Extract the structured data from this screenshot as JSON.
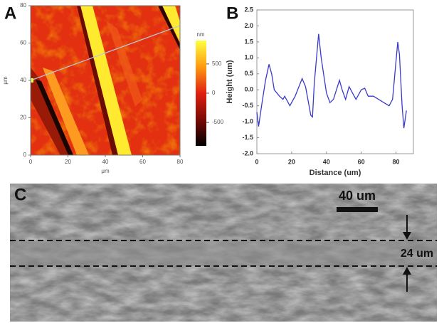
{
  "chart_data": [
    {
      "type": "heatmap",
      "label": "A",
      "xlabel": "μm",
      "ylabel": "μm",
      "xlim": [
        0,
        80
      ],
      "ylim": [
        0,
        80
      ],
      "xticks": [
        0,
        20,
        40,
        60,
        80
      ],
      "yticks": [
        0,
        20,
        40,
        60,
        80
      ],
      "colorbar_label": "nm",
      "clim": [
        -900,
        900
      ],
      "cticks": [
        500,
        0,
        -500
      ]
    },
    {
      "type": "line",
      "label": "B",
      "xlabel": "Distance (um)",
      "ylabel": "Height (um)",
      "xlim": [
        0,
        90
      ],
      "ylim": [
        -2.0,
        2.5
      ],
      "xticks": [
        0,
        20,
        40,
        60,
        80
      ],
      "yticks": [
        {
          "value": -2.0,
          "label": "-2.0"
        },
        {
          "value": -1.5,
          "label": "-1.5"
        },
        {
          "value": -1.0,
          "label": "-1.0"
        },
        {
          "value": -0.5,
          "label": "-0.5"
        },
        {
          "value": 0,
          "label": "0.0"
        },
        0.5,
        {
          "value": 1.0,
          "label": "1.0"
        },
        1.5,
        {
          "value": 2.0,
          "label": "2.0"
        },
        2.5
      ],
      "x": [
        0,
        1,
        3,
        5,
        7,
        8.5,
        10,
        13,
        15,
        16,
        19,
        22,
        26,
        28,
        31,
        32,
        33,
        35.5,
        37,
        40,
        42,
        44,
        47.5,
        49,
        51,
        53,
        55,
        57,
        60,
        62,
        64,
        67,
        70,
        73,
        76,
        78,
        81,
        82,
        83.5,
        84.5,
        86
      ],
      "series": [
        {
          "color": "#3a3ac8",
          "values": [
            -0.7,
            -1.15,
            -0.4,
            0.3,
            0.8,
            0.5,
            0.0,
            -0.2,
            -0.3,
            -0.2,
            -0.5,
            -0.2,
            0.35,
            0.1,
            -0.8,
            -0.85,
            0.2,
            1.75,
            1.0,
            -0.1,
            -0.4,
            -0.3,
            0.3,
            0.0,
            -0.3,
            0.1,
            -0.1,
            -0.3,
            0.0,
            0.05,
            -0.2,
            -0.2,
            -0.3,
            -0.4,
            -0.5,
            -0.3,
            1.5,
            1.1,
            -0.5,
            -1.2,
            -0.65
          ]
        }
      ]
    }
  ],
  "image_panel": {
    "label": "C",
    "scale_bar": "40 um",
    "measurement": "24 um"
  }
}
